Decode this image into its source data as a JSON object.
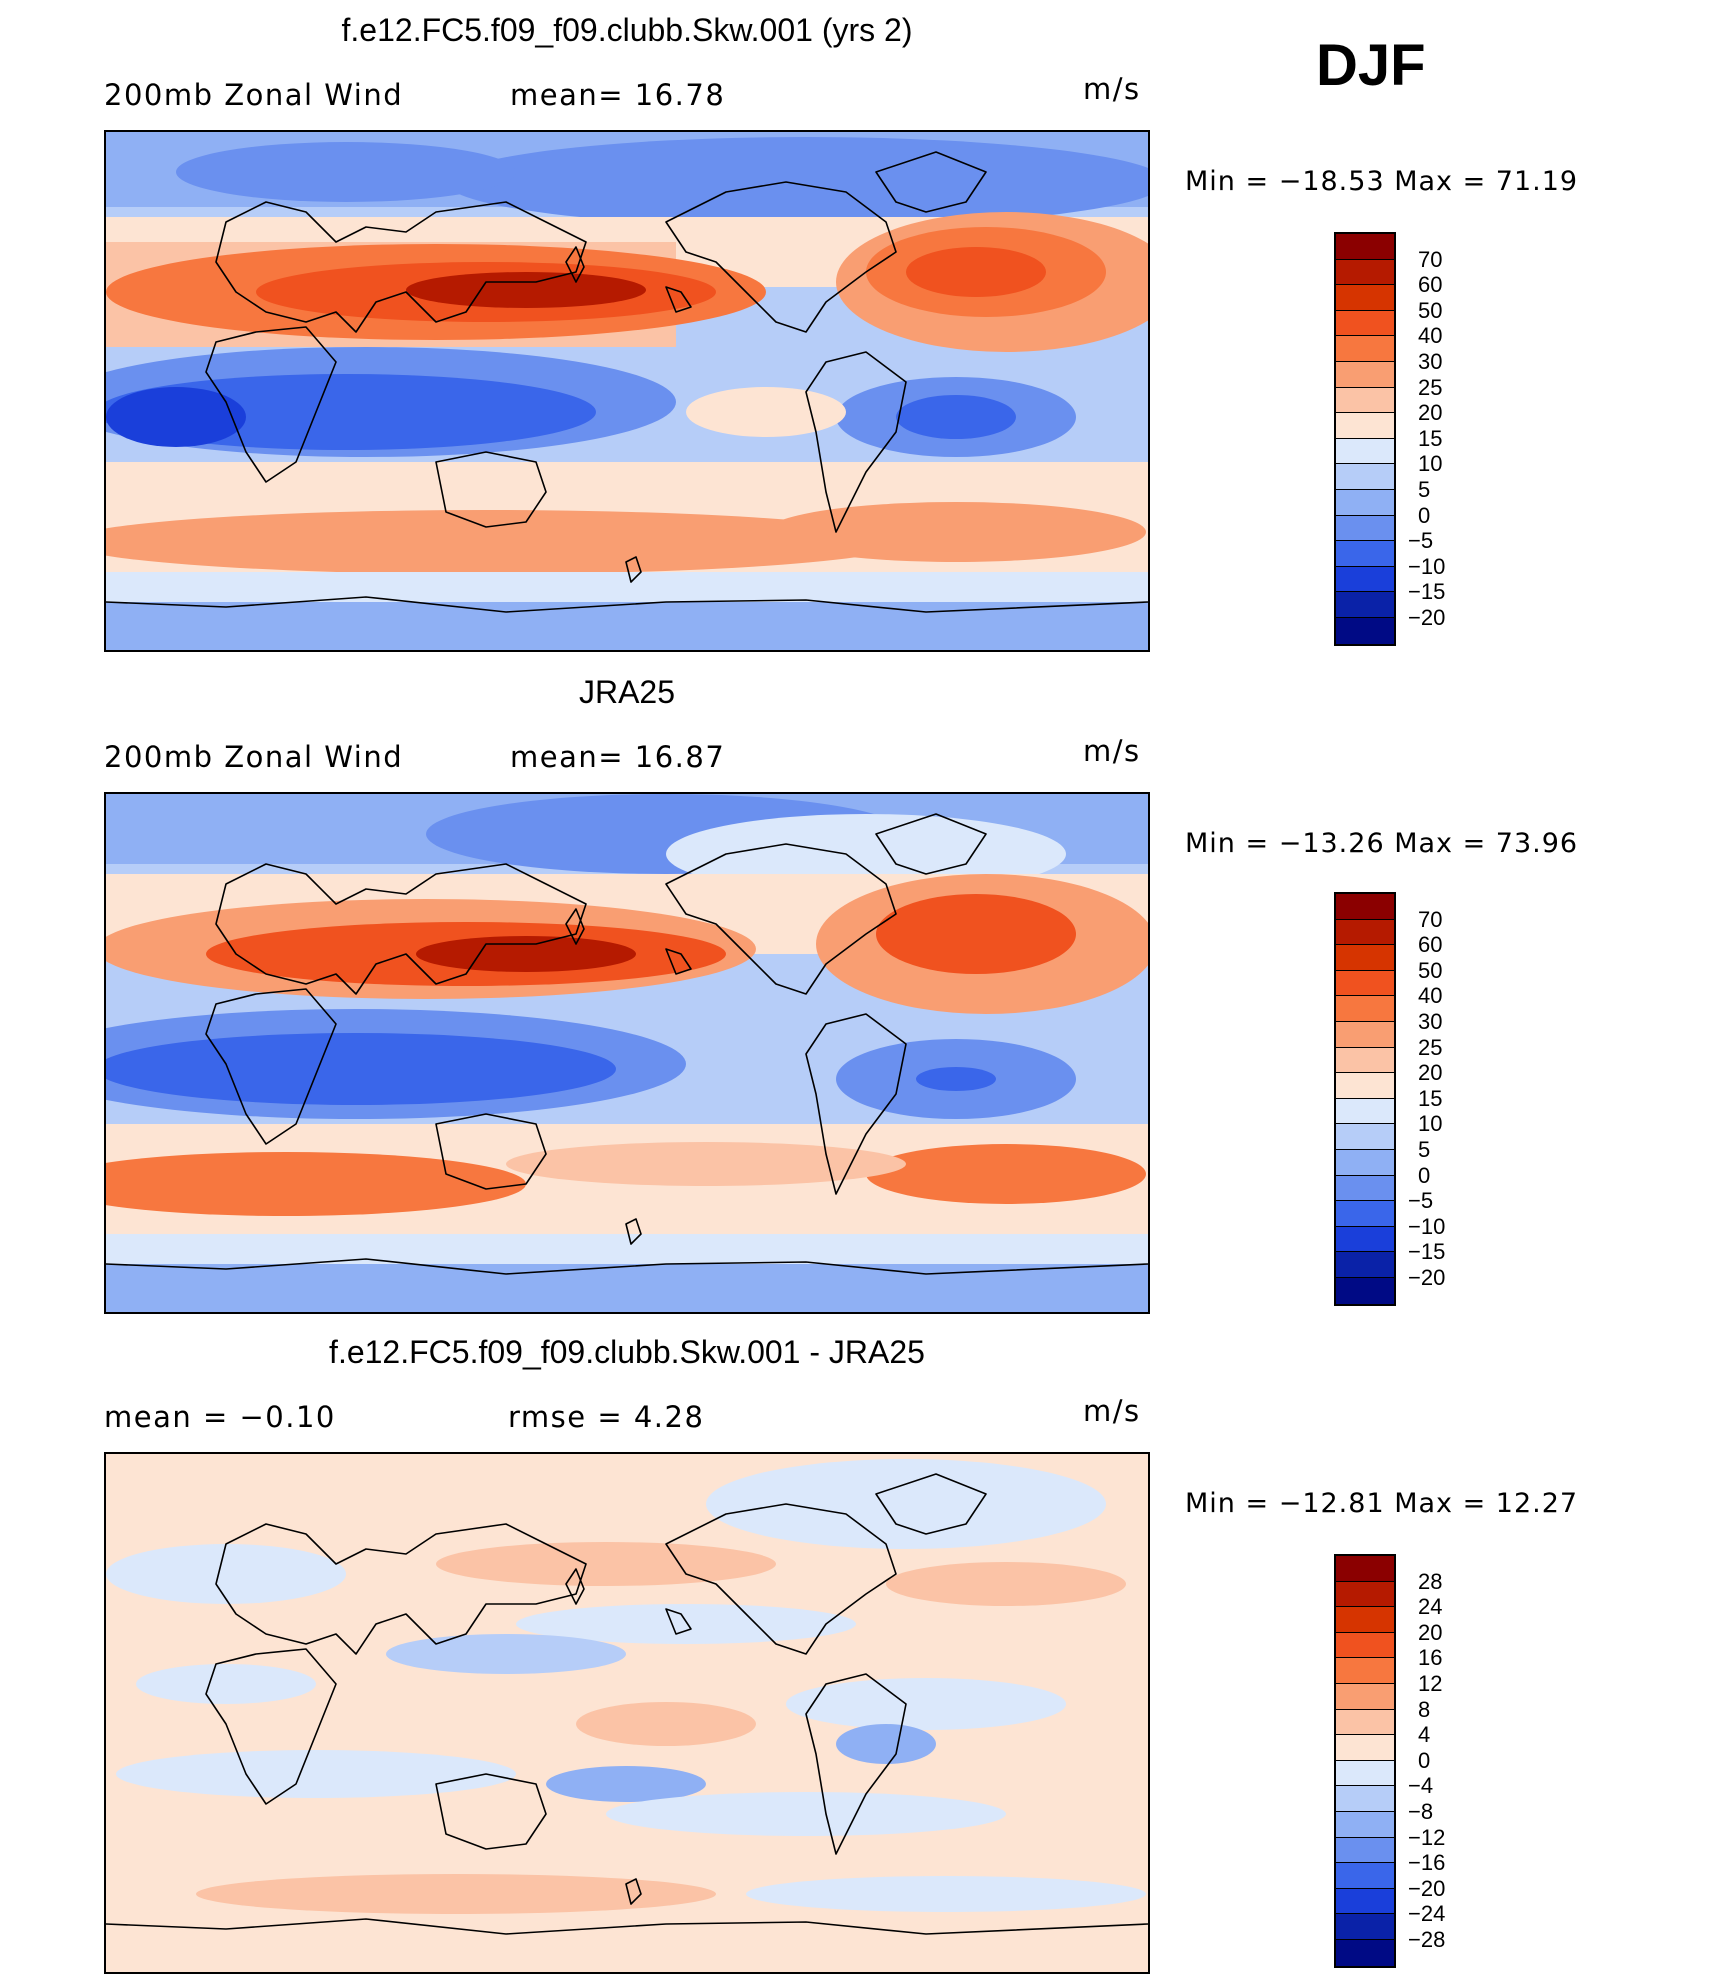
{
  "season": "DJF",
  "units": "m/s",
  "panels": [
    {
      "title": "f.e12.FC5.f09_f09.clubb.Skw.001 (yrs 2)",
      "left_text": "200mb  Zonal  Wind",
      "mid_text": "mean=   16.78",
      "units": "m/s",
      "minmax": "Min  =  −18.53  Max  =    71.19",
      "field": "model"
    },
    {
      "title": "JRA25",
      "left_text": "200mb  Zonal  Wind",
      "mid_text": "mean=   16.87",
      "units": "m/s",
      "minmax": "Min  =  −13.26  Max  =    73.96",
      "field": "obs"
    },
    {
      "title": "f.e12.FC5.f09_f09.clubb.Skw.001 - JRA25",
      "left_text": "mean  =     −0.10",
      "mid_text": "rmse  =     4.28",
      "units": "m/s",
      "minmax": "Min  =  −12.81  Max  =    12.27",
      "field": "diff"
    }
  ],
  "colorbars": {
    "field_levels": [
      "70",
      "60",
      "50",
      "40",
      "30",
      "25",
      "20",
      "15",
      "10",
      "5",
      "0",
      "−5",
      "−10",
      "−15",
      "−20"
    ],
    "diff_levels": [
      "28",
      "24",
      "20",
      "16",
      "12",
      "8",
      "4",
      "0",
      "−4",
      "−8",
      "−12",
      "−16",
      "−20",
      "−24",
      "−28"
    ],
    "colors": [
      "#8b0000",
      "#b51a00",
      "#d63400",
      "#f0521f",
      "#f7773f",
      "#f99e72",
      "#fbc3a6",
      "#fde4d3",
      "#dbe8fb",
      "#b6cdf8",
      "#8fb0f4",
      "#6a90ef",
      "#3a66ea",
      "#1a3fda",
      "#0a22a8",
      "#000a85"
    ]
  }
}
